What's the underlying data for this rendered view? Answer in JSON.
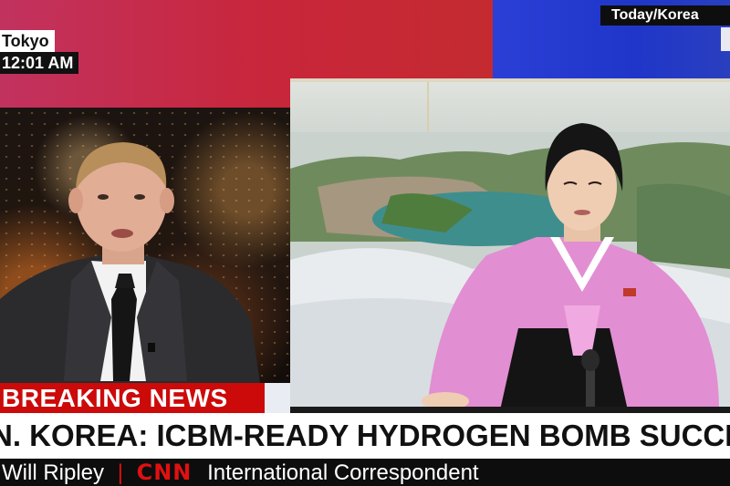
{
  "top_bar": {
    "location": "Tokyo",
    "time": "12:01 AM",
    "source_label": "Today/Korea"
  },
  "lower_third": {
    "breaking_label": "BREAKING NEWS",
    "headline": "N. KOREA: ICBM-READY HYDROGEN BOMB SUCCESSFULLY TESTED",
    "reporter_name": "Will Ripley",
    "network_logo": "CNN",
    "reporter_title": "International Correspondent"
  },
  "colors": {
    "breaking_red": "#cc0a0a",
    "cnn_red": "#e01010",
    "top_red": "#c8263a",
    "top_blue": "#1f36c9"
  }
}
